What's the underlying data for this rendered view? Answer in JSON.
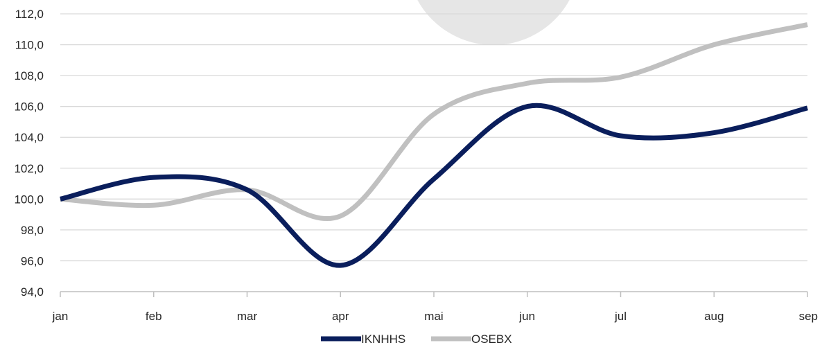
{
  "chart_data": {
    "type": "line",
    "categories": [
      "jan",
      "feb",
      "mar",
      "apr",
      "mai",
      "jun",
      "jul",
      "aug",
      "sep"
    ],
    "series": [
      {
        "name": "IKNHHS",
        "color": "#0a1e5c",
        "values": [
          100.0,
          101.4,
          100.6,
          95.7,
          101.3,
          106.0,
          104.1,
          104.3,
          105.9
        ]
      },
      {
        "name": "OSEBX",
        "color": "#c0c0c0",
        "values": [
          100.0,
          99.6,
          100.6,
          98.9,
          105.5,
          107.5,
          107.9,
          110.0,
          111.3
        ]
      }
    ],
    "y_ticks": [
      "94,0",
      "96,0",
      "98,0",
      "100,0",
      "102,0",
      "104,0",
      "106,0",
      "108,0",
      "110,0",
      "112,0"
    ],
    "ylim": [
      94,
      112
    ],
    "grid": "horizontal",
    "legend_position": "bottom-center",
    "title": "",
    "xlabel": "",
    "ylabel": ""
  }
}
